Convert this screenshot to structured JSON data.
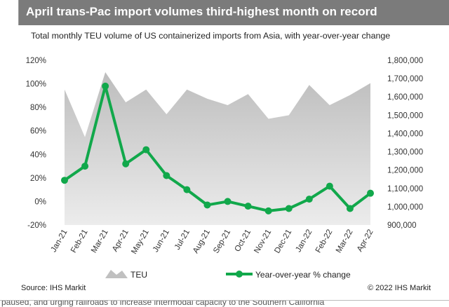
{
  "title": "April trans-Pac import volumes third-highest month on record",
  "subtitle": "Total monthly TEU volume of US containerized imports from Asia, with year-over-year change",
  "source": "Source: IHS Markit",
  "copyright": "© 2022 IHS Markit",
  "bottom_text": "paused, and urging railroads to increase intermodal capacity to the Southern California",
  "colors": {
    "title_bg": "#7b7b7b",
    "teu": "#c8c8c8",
    "yoy": "#11a84b"
  },
  "chart_data": {
    "type": "line",
    "categories": [
      "Jan-21",
      "Feb-21",
      "Mar-21",
      "Apr-21",
      "May-21",
      "Jun-21",
      "Jul-21",
      "Aug-21",
      "Sep-21",
      "Oct-21",
      "Nov-21",
      "Dec-21",
      "Jan-22",
      "Feb-22",
      "Mar-22",
      "Apr-22"
    ],
    "series": [
      {
        "name": "TEU",
        "type": "area",
        "axis": "right",
        "values": [
          1640000,
          1380000,
          1735000,
          1570000,
          1640000,
          1505000,
          1640000,
          1590000,
          1555000,
          1615000,
          1480000,
          1500000,
          1665000,
          1555000,
          1610000,
          1675000
        ]
      },
      {
        "name": "Year-over-year % change",
        "type": "line",
        "axis": "left",
        "values": [
          18,
          30,
          98,
          32,
          44,
          22,
          10,
          -3,
          0,
          -4,
          -8,
          -6,
          2,
          13,
          -6,
          7
        ]
      }
    ],
    "y_left": {
      "min": -20,
      "max": 120,
      "ticks": [
        "-20%",
        "0%",
        "20%",
        "40%",
        "60%",
        "80%",
        "100%",
        "120%"
      ]
    },
    "y_right": {
      "min": 900000,
      "max": 1800000,
      "ticks": [
        "900,000",
        "1,000,000",
        "1,100,000",
        "1,200,000",
        "1,300,000",
        "1,400,000",
        "1,500,000",
        "1,600,000",
        "1,700,000",
        "1,800,000"
      ]
    },
    "legend": [
      "TEU",
      "Year-over-year % change"
    ]
  }
}
